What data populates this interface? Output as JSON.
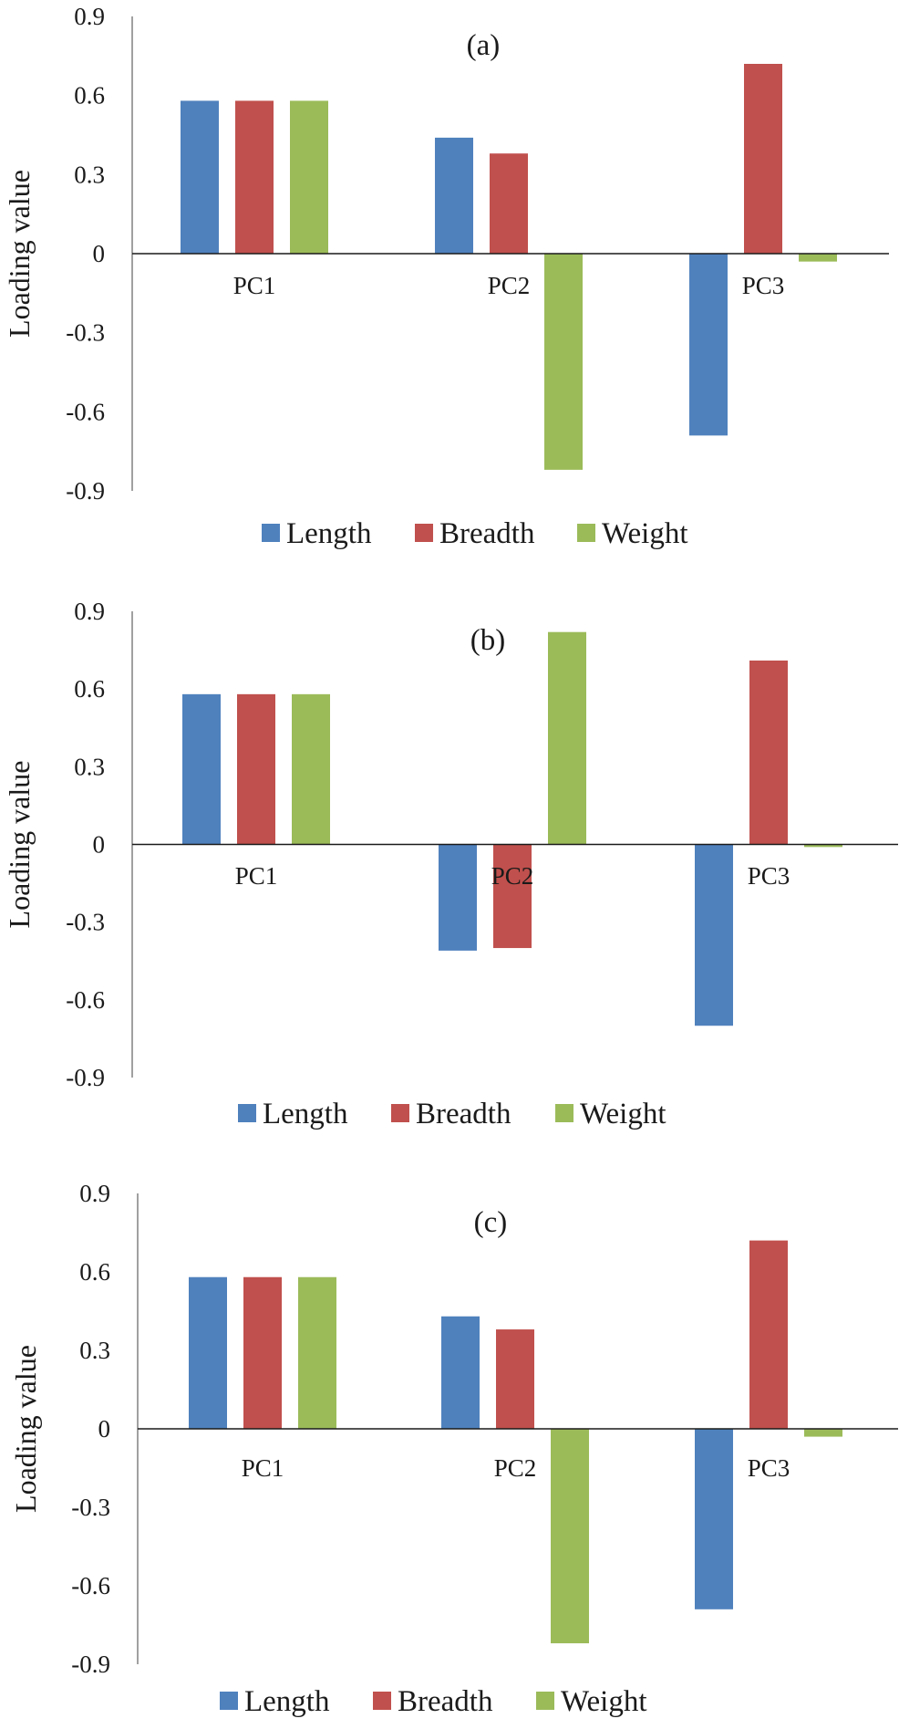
{
  "chart_data": [
    {
      "type": "bar",
      "title": "(a)",
      "ylabel": "Loading value",
      "xlabel": "",
      "ylim": [
        -0.9,
        0.9
      ],
      "yticks": [
        0.9,
        0.6,
        0.3,
        0,
        -0.3,
        -0.6,
        -0.9
      ],
      "ytick_labels": [
        "0.9",
        "0.6",
        "0.3",
        "0",
        "-0.3",
        "-0.6",
        "-0.9"
      ],
      "categories": [
        "PC1",
        "PC2",
        "PC3"
      ],
      "series": [
        {
          "name": "Length",
          "color": "#4F81BD",
          "values": [
            0.58,
            0.44,
            -0.69
          ]
        },
        {
          "name": "Breadth",
          "color": "#C0504D",
          "values": [
            0.58,
            0.38,
            0.72
          ]
        },
        {
          "name": "Weight",
          "color": "#9BBB59",
          "values": [
            0.58,
            -0.82,
            -0.03
          ]
        }
      ],
      "legend": "bottom",
      "grid": false
    },
    {
      "type": "bar",
      "title": "(b)",
      "ylabel": "Loading value",
      "xlabel": "",
      "ylim": [
        -0.9,
        0.9
      ],
      "yticks": [
        0.9,
        0.6,
        0.3,
        0,
        -0.3,
        -0.6,
        -0.9
      ],
      "ytick_labels": [
        "0.9",
        "0.6",
        "0.3",
        "0",
        "-0.3",
        "-0.6",
        "-0.9"
      ],
      "categories": [
        "PC1",
        "PC2",
        "PC3"
      ],
      "series": [
        {
          "name": "Length",
          "color": "#4F81BD",
          "values": [
            0.58,
            -0.41,
            -0.7
          ]
        },
        {
          "name": "Breadth",
          "color": "#C0504D",
          "values": [
            0.58,
            -0.4,
            0.71
          ]
        },
        {
          "name": "Weight",
          "color": "#9BBB59",
          "values": [
            0.58,
            0.82,
            -0.01
          ]
        }
      ],
      "legend": "bottom",
      "grid": false
    },
    {
      "type": "bar",
      "title": "(c)",
      "ylabel": "Loading value",
      "xlabel": "",
      "ylim": [
        -0.9,
        0.9
      ],
      "yticks": [
        0.9,
        0.6,
        0.3,
        0,
        -0.3,
        -0.6,
        -0.9
      ],
      "ytick_labels": [
        "0.9",
        "0.6",
        "0.3",
        "0",
        "-0.3",
        "-0.6",
        "-0.9"
      ],
      "categories": [
        "PC1",
        "PC2",
        "PC3"
      ],
      "series": [
        {
          "name": "Length",
          "color": "#4F81BD",
          "values": [
            0.58,
            0.43,
            -0.69
          ]
        },
        {
          "name": "Breadth",
          "color": "#C0504D",
          "values": [
            0.58,
            0.38,
            0.72
          ]
        },
        {
          "name": "Weight",
          "color": "#9BBB59",
          "values": [
            0.58,
            -0.82,
            -0.03
          ]
        }
      ],
      "legend": "bottom",
      "grid": false
    }
  ]
}
